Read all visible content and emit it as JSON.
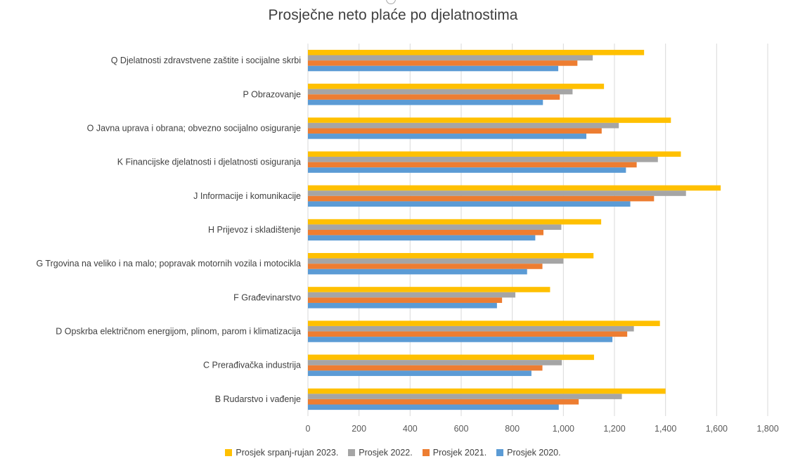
{
  "chart_data": {
    "type": "bar",
    "orientation": "horizontal",
    "title": "Prosječne neto plaće po djelatnostima",
    "xlabel": "",
    "ylabel": "",
    "xlim": [
      0,
      1800
    ],
    "x_ticks": [
      "0",
      "200",
      "400",
      "600",
      "800",
      "1,000",
      "1,200",
      "1,400",
      "1,600",
      "1,800"
    ],
    "grid": true,
    "legend_position": "bottom",
    "categories": [
      "Q  Djelatnosti zdravstvene zaštite i socijalne skrbi",
      "P  Obrazovanje",
      "O  Javna uprava i obrana; obvezno socijalno osiguranje",
      "K  Financijske djelatnosti i djelatnosti osiguranja",
      "J  Informacije i komunikacije",
      "H  Prijevoz i skladištenje",
      "G  Trgovina na veliko i na malo; popravak motornih vozila i motocikla",
      "F  Građevinarstvo",
      "D  Opskrba električnom energijom, plinom, parom i klimatizacija",
      "C  Prerađivačka industrija",
      "B  Rudarstvo i vađenje"
    ],
    "series": [
      {
        "name": "Prosjek srpanj-rujan 2023.",
        "color": "#ffc000",
        "values": [
          1316,
          1159,
          1421,
          1460,
          1616,
          1148,
          1118,
          948,
          1378,
          1120,
          1400
        ]
      },
      {
        "name": "Prosjek 2022.",
        "color": "#a5a5a5",
        "values": [
          1115,
          1036,
          1217,
          1370,
          1480,
          992,
          1000,
          812,
          1276,
          994,
          1229
        ]
      },
      {
        "name": "Prosjek 2021.",
        "color": "#ed7d31",
        "values": [
          1055,
          986,
          1150,
          1287,
          1355,
          922,
          918,
          760,
          1250,
          918,
          1060
        ]
      },
      {
        "name": "Prosjek 2020.",
        "color": "#5b9bd5",
        "values": [
          980,
          920,
          1090,
          1245,
          1262,
          890,
          858,
          740,
          1192,
          875,
          982
        ]
      }
    ]
  }
}
